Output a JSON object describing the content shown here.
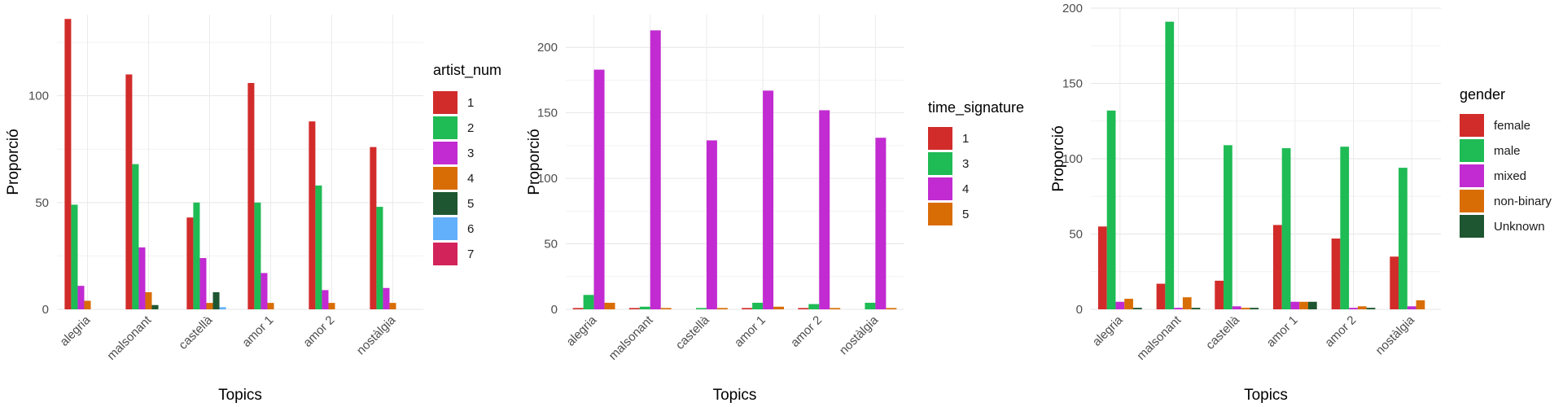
{
  "chart_data": [
    {
      "type": "bar",
      "xlabel": "Topics",
      "ylabel": "Proporció",
      "ylim": [
        0,
        138
      ],
      "yticks": [
        0,
        50,
        100
      ],
      "grid": true,
      "legend_title": "artist_num",
      "legend_placement": "right",
      "categories": [
        "alegria",
        "malsonant",
        "castellà",
        "amor 1",
        "amor 2",
        "nostàlgia"
      ],
      "series": [
        {
          "name": "1",
          "color": "#d12c2a",
          "values": [
            136,
            110,
            43,
            106,
            88,
            76
          ]
        },
        {
          "name": "2",
          "color": "#1fbb55",
          "values": [
            49,
            68,
            50,
            50,
            58,
            48
          ]
        },
        {
          "name": "3",
          "color": "#c12bd1",
          "values": [
            11,
            29,
            24,
            17,
            9,
            10
          ]
        },
        {
          "name": "4",
          "color": "#d96d05",
          "values": [
            4,
            8,
            3,
            3,
            3,
            3
          ]
        },
        {
          "name": "5",
          "color": "#1e5631",
          "values": [
            0,
            2,
            8,
            0,
            0,
            0
          ]
        },
        {
          "name": "6",
          "color": "#62b0fb",
          "values": [
            0,
            0,
            1,
            0,
            0,
            0
          ]
        },
        {
          "name": "7",
          "color": "#d3235b",
          "values": [
            0,
            0,
            0,
            0,
            0,
            0
          ]
        }
      ]
    },
    {
      "type": "bar",
      "xlabel": "Topics",
      "ylabel": "Proporció",
      "ylim": [
        0,
        225
      ],
      "yticks": [
        0,
        50,
        100,
        150,
        200
      ],
      "grid": true,
      "legend_title": "time_signature",
      "legend_placement": "right",
      "categories": [
        "alegria",
        "malsonant",
        "castellà",
        "amor 1",
        "amor 2",
        "nostàlgia"
      ],
      "series": [
        {
          "name": "1",
          "color": "#d12c2a",
          "values": [
            1,
            1,
            0,
            1,
            1,
            0
          ]
        },
        {
          "name": "3",
          "color": "#1fbb55",
          "values": [
            11,
            2,
            1,
            5,
            4,
            5
          ]
        },
        {
          "name": "4",
          "color": "#c12bd1",
          "values": [
            183,
            213,
            129,
            167,
            152,
            131
          ]
        },
        {
          "name": "5",
          "color": "#d96d05",
          "values": [
            5,
            1,
            1,
            2,
            1,
            1
          ]
        }
      ]
    },
    {
      "type": "bar",
      "xlabel": "Topics",
      "ylabel": "Proporció",
      "ylim": [
        0,
        200
      ],
      "yticks": [
        0,
        50,
        100,
        150,
        200
      ],
      "grid": true,
      "legend_title": "gender",
      "legend_placement": "right",
      "categories": [
        "alegria",
        "malsonant",
        "castellà",
        "amor 1",
        "amor 2",
        "nostàlgia"
      ],
      "series": [
        {
          "name": "female",
          "color": "#d12c2a",
          "values": [
            55,
            17,
            19,
            56,
            47,
            35
          ]
        },
        {
          "name": "male",
          "color": "#1fbb55",
          "values": [
            132,
            191,
            109,
            107,
            108,
            94
          ]
        },
        {
          "name": "mixed",
          "color": "#c12bd1",
          "values": [
            5,
            1,
            2,
            5,
            1,
            2
          ]
        },
        {
          "name": "non-binary",
          "color": "#d96d05",
          "values": [
            7,
            8,
            1,
            5,
            2,
            6
          ]
        },
        {
          "name": "Unknown",
          "color": "#1e5631",
          "values": [
            1,
            1,
            1,
            5,
            1,
            0
          ]
        }
      ]
    }
  ]
}
